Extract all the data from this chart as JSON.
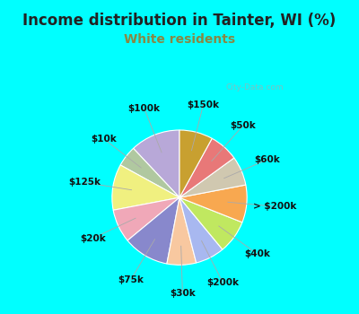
{
  "title": "Income distribution in Tainter, WI (%)",
  "subtitle": "White residents",
  "watermark": "© City-Data.com",
  "bg_top": "#00FFFF",
  "bg_chart": "#e0f0e8",
  "title_color": "#222222",
  "subtitle_color": "#888844",
  "labels": [
    "$100k",
    "$10k",
    "$125k",
    "$20k",
    "$75k",
    "$30k",
    "$200k",
    "$40k",
    "> $200k",
    "$60k",
    "$50k",
    "$150k"
  ],
  "values": [
    12,
    5,
    11,
    8,
    11,
    7,
    7,
    8,
    9,
    7,
    7,
    8
  ],
  "colors": [
    "#b8a8d8",
    "#b0c8a0",
    "#f0f080",
    "#f0a8b8",
    "#8888cc",
    "#f8c8a0",
    "#a8b8f0",
    "#c0e860",
    "#f8a850",
    "#d0c8b0",
    "#e87878",
    "#c8a030"
  ],
  "startangle": 90,
  "title_fontsize": 12,
  "subtitle_fontsize": 10,
  "label_fontsize": 7.5,
  "figsize": [
    4.0,
    3.5
  ],
  "dpi": 100
}
